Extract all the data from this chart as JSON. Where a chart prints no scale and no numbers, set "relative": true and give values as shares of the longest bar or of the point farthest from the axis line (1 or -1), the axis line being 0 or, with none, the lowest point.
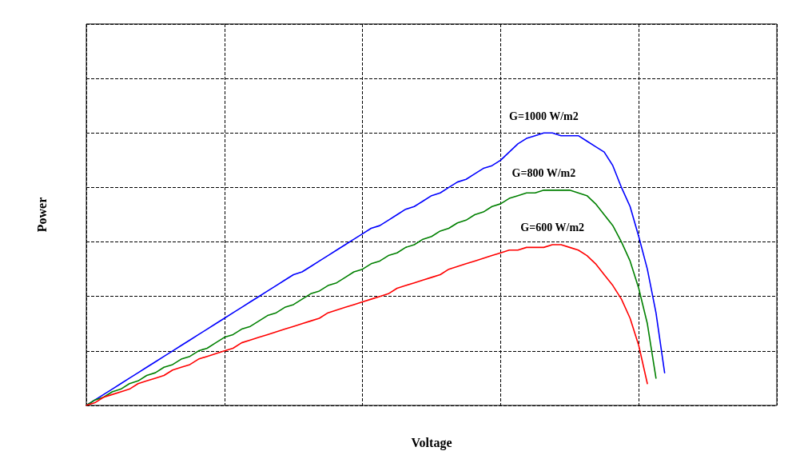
{
  "chart_data": {
    "type": "line",
    "relative": true,
    "xlabel": "Voltage",
    "ylabel": "Power",
    "grid": true,
    "legend": false,
    "marker": "none",
    "line_style": "solid",
    "categories": [
      null,
      null,
      null,
      null,
      null,
      null,
      null,
      null,
      null,
      null,
      null,
      null,
      null,
      null,
      null,
      null,
      null,
      null,
      null,
      null,
      null,
      null,
      null,
      null,
      null,
      null,
      null,
      null,
      null,
      null,
      null,
      null,
      null,
      null,
      null,
      null,
      null,
      null,
      null,
      null,
      null,
      null,
      null,
      null,
      null,
      null,
      null,
      null,
      null,
      null,
      null,
      null,
      null,
      null,
      null,
      null,
      null,
      null,
      null,
      null,
      null,
      null,
      null,
      null,
      null,
      null,
      null,
      null,
      null,
      null,
      null,
      null,
      null,
      null,
      null,
      null,
      null,
      null,
      null,
      null,
      null
    ],
    "series": [
      {
        "name": "G=1000 W/m2",
        "color": "#0000ff",
        "values": [
          0,
          0.02,
          0.04,
          0.06,
          0.08,
          0.1,
          0.12,
          0.14,
          0.16,
          0.18,
          0.2,
          0.22,
          0.24,
          0.26,
          0.28,
          0.3,
          0.32,
          0.34,
          0.36,
          0.38,
          0.4,
          0.42,
          0.44,
          0.46,
          0.48,
          0.49,
          0.51,
          0.53,
          0.55,
          0.57,
          0.59,
          0.61,
          0.63,
          0.65,
          0.66,
          0.68,
          0.7,
          0.72,
          0.73,
          0.75,
          0.77,
          0.78,
          0.8,
          0.82,
          0.83,
          0.85,
          0.87,
          0.88,
          0.9,
          0.93,
          0.96,
          0.98,
          0.99,
          1,
          1,
          0.99,
          0.99,
          0.99,
          0.97,
          0.95,
          0.93,
          0.88,
          0.8,
          0.73,
          0.62,
          0.5,
          0.34,
          0.12,
          null,
          null,
          null,
          null,
          null,
          null,
          null,
          null,
          null,
          null,
          null,
          null,
          null
        ]
      },
      {
        "name": "G=800 W/m2",
        "color": "#008000",
        "values": [
          0,
          0.02,
          0.03,
          0.05,
          0.06,
          0.08,
          0.09,
          0.11,
          0.12,
          0.14,
          0.15,
          0.17,
          0.18,
          0.2,
          0.21,
          0.23,
          0.25,
          0.26,
          0.28,
          0.29,
          0.31,
          0.33,
          0.34,
          0.36,
          0.37,
          0.39,
          0.41,
          0.42,
          0.44,
          0.45,
          0.47,
          0.49,
          0.5,
          0.52,
          0.53,
          0.55,
          0.56,
          0.58,
          0.59,
          0.61,
          0.62,
          0.64,
          0.65,
          0.67,
          0.68,
          0.7,
          0.71,
          0.73,
          0.74,
          0.76,
          0.77,
          0.78,
          0.78,
          0.79,
          0.79,
          0.79,
          0.79,
          0.78,
          0.77,
          0.74,
          0.7,
          0.66,
          0.6,
          0.53,
          0.43,
          0.3,
          0.1,
          null,
          null,
          null,
          null,
          null,
          null,
          null,
          null,
          null,
          null,
          null,
          null,
          null,
          null
        ]
      },
      {
        "name": "G=600 W/m2",
        "color": "#ff0000",
        "values": [
          0,
          0.01,
          0.03,
          0.04,
          0.05,
          0.06,
          0.08,
          0.09,
          0.1,
          0.11,
          0.13,
          0.14,
          0.15,
          0.17,
          0.18,
          0.19,
          0.2,
          0.21,
          0.23,
          0.24,
          0.25,
          0.26,
          0.27,
          0.28,
          0.29,
          0.3,
          0.31,
          0.32,
          0.34,
          0.35,
          0.36,
          0.37,
          0.38,
          0.39,
          0.4,
          0.41,
          0.43,
          0.44,
          0.45,
          0.46,
          0.47,
          0.48,
          0.5,
          0.51,
          0.52,
          0.53,
          0.54,
          0.55,
          0.56,
          0.57,
          0.57,
          0.58,
          0.58,
          0.58,
          0.59,
          0.59,
          0.58,
          0.57,
          0.55,
          0.52,
          0.48,
          0.44,
          0.39,
          0.32,
          0.22,
          0.08,
          null,
          null,
          null,
          null,
          null,
          null,
          null,
          null,
          null,
          null,
          null,
          null,
          null,
          null,
          null
        ]
      }
    ]
  }
}
